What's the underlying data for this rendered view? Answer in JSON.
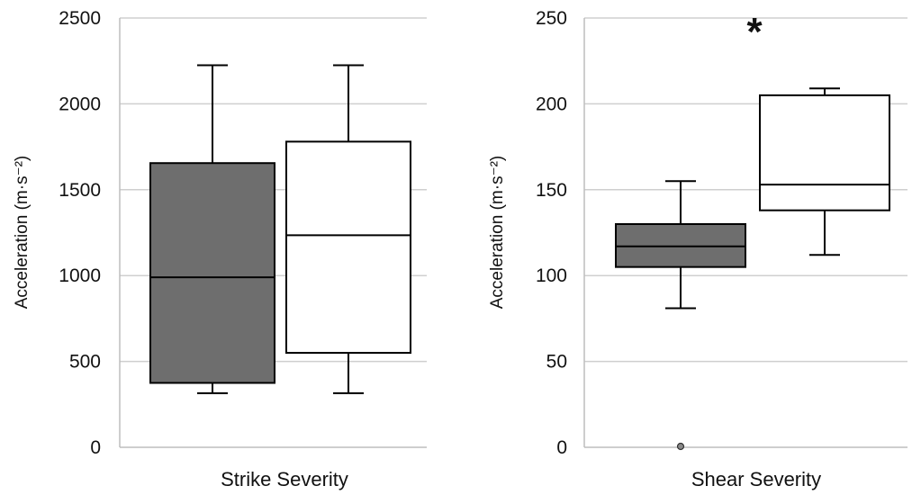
{
  "colors": {
    "gridline": "#cfcfcf",
    "axis": "#bdbdbd",
    "box_dark": "#6e6e6e",
    "box_light": "#ffffff",
    "stroke": "#000000",
    "outlier": "#888888"
  },
  "chart_data": [
    {
      "type": "box",
      "xlabel": "Strike Severity",
      "ylabel": "Acceleration (m·s⁻²)",
      "ylim": [
        0,
        2500
      ],
      "yticks": [
        0,
        500,
        1000,
        1500,
        2000,
        2500
      ],
      "grid": true,
      "series": [
        {
          "fill": "#6e6e6e",
          "min": 315,
          "q1": 375,
          "median": 990,
          "q3": 1655,
          "max": 2225,
          "outliers": []
        },
        {
          "fill": "#ffffff",
          "min": 315,
          "q1": 550,
          "median": 1235,
          "q3": 1780,
          "max": 2225,
          "outliers": []
        }
      ],
      "annotations": []
    },
    {
      "type": "box",
      "xlabel": "Shear Severity",
      "ylabel": "Acceleration (m·s⁻²)",
      "ylim": [
        0,
        250
      ],
      "yticks": [
        0,
        50,
        100,
        150,
        200,
        250
      ],
      "grid": true,
      "series": [
        {
          "fill": "#6e6e6e",
          "min": 81,
          "q1": 105,
          "median": 117,
          "q3": 130,
          "max": 155,
          "outliers": [
            0
          ]
        },
        {
          "fill": "#ffffff",
          "min": 112,
          "q1": 138,
          "median": 153,
          "q3": 205,
          "max": 209,
          "outliers": []
        }
      ],
      "annotations": [
        {
          "text": "*",
          "at_box": 1,
          "y": 250
        }
      ]
    }
  ]
}
